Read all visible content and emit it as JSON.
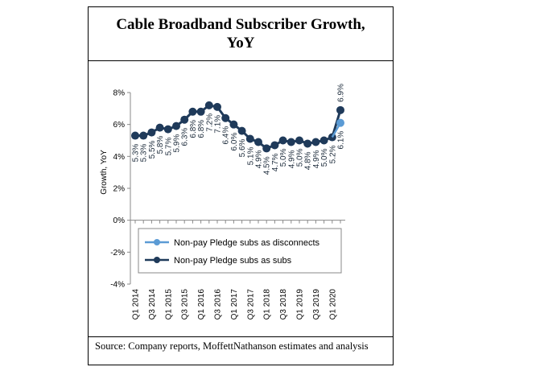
{
  "chart_data": {
    "type": "line",
    "title": "Cable Broadband Subscriber Growth, YoY",
    "ylabel": "Growth, YoY",
    "xlabel": "",
    "ylim": [
      -0.04,
      0.08
    ],
    "y_ticks": [
      {
        "value": 0.08,
        "label": "8%"
      },
      {
        "value": 0.06,
        "label": "6%"
      },
      {
        "value": 0.04,
        "label": "4%"
      },
      {
        "value": 0.02,
        "label": "2%"
      },
      {
        "value": 0.0,
        "label": "0%"
      },
      {
        "value": -0.02,
        "label": "-2%"
      },
      {
        "value": -0.04,
        "label": "-4%"
      }
    ],
    "categories": [
      "Q1 2014",
      "Q2 2014",
      "Q3 2014",
      "Q4 2014",
      "Q1 2015",
      "Q2 2015",
      "Q3 2015",
      "Q4 2015",
      "Q1 2016",
      "Q2 2016",
      "Q3 2016",
      "Q4 2016",
      "Q1 2017",
      "Q2 2017",
      "Q3 2017",
      "Q4 2017",
      "Q1 2018",
      "Q2 2018",
      "Q3 2018",
      "Q4 2018",
      "Q1 2019",
      "Q2 2019",
      "Q3 2019",
      "Q4 2019",
      "Q1 2020",
      "Q2 2020"
    ],
    "x_tick_labels": [
      "Q1 2014",
      "Q3 2014",
      "Q1 2015",
      "Q3 2015",
      "Q1 2016",
      "Q3 2016",
      "Q1 2017",
      "Q3 2017",
      "Q1 2018",
      "Q3 2018",
      "Q1 2019",
      "Q3 2019",
      "Q1 2020"
    ],
    "series": [
      {
        "name": "Non-pay Pledge subs as disconnects",
        "color": "#5b9bd5",
        "values": [
          null,
          null,
          null,
          null,
          null,
          null,
          null,
          null,
          null,
          null,
          null,
          null,
          null,
          null,
          null,
          null,
          null,
          null,
          null,
          null,
          null,
          null,
          null,
          null,
          0.052,
          0.061
        ],
        "labels": [
          null,
          null,
          null,
          null,
          null,
          null,
          null,
          null,
          null,
          null,
          null,
          null,
          null,
          null,
          null,
          null,
          null,
          null,
          null,
          null,
          null,
          null,
          null,
          null,
          null,
          "6.1%"
        ]
      },
      {
        "name": "Non-pay Pledge subs as subs",
        "color": "#1f3a5a",
        "values": [
          0.053,
          0.053,
          0.055,
          0.058,
          0.057,
          0.059,
          0.063,
          0.068,
          0.068,
          0.072,
          0.071,
          0.064,
          0.06,
          0.056,
          0.051,
          0.049,
          0.045,
          0.047,
          0.05,
          0.049,
          0.05,
          0.048,
          0.049,
          0.05,
          0.052,
          0.069
        ],
        "labels": [
          "5.3%",
          "5.3%",
          "5.5%",
          "5.8%",
          "5.7%",
          "5.9%",
          "6.3%",
          "6.8%",
          "6.8%",
          "7.2%",
          "7.1%",
          "6.4%",
          "6.0%",
          "5.6%",
          "5.1%",
          "4.9%",
          "4.5%",
          "4.7%",
          "5.0%",
          "4.9%",
          "5.0%",
          "4.8%",
          "4.9%",
          "5.0%",
          "5.2%",
          "6.9%"
        ]
      }
    ],
    "legend_position": "lower-center",
    "grid": false
  },
  "source_note": "Source: Company reports, MoffettNathanson estimates and analysis"
}
